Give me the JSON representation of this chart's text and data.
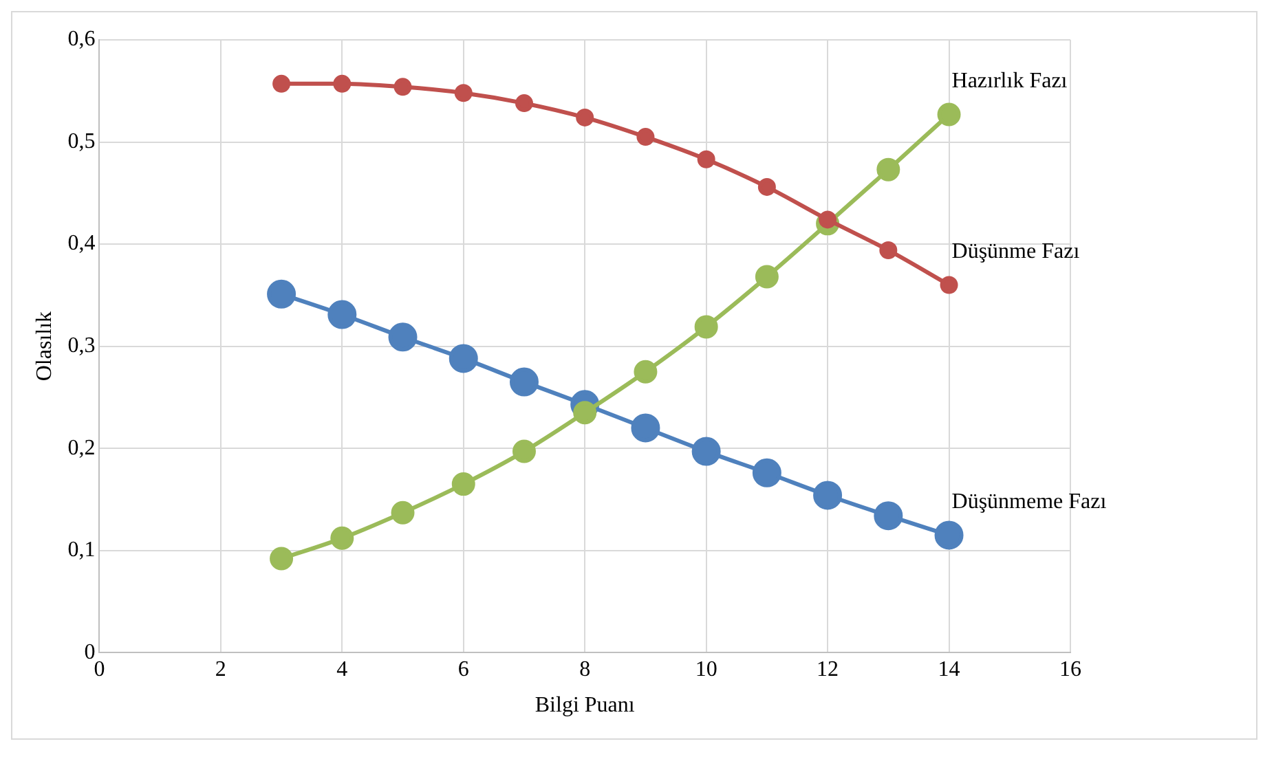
{
  "chart_data": {
    "type": "line",
    "xlabel": "Bilgi Puanı",
    "ylabel": "Olasılık",
    "x": [
      3,
      4,
      5,
      6,
      7,
      8,
      9,
      10,
      11,
      12,
      13,
      14
    ],
    "series": [
      {
        "name": "Düşünme Fazı",
        "color": "#c0504d",
        "values": [
          0.557,
          0.557,
          0.554,
          0.548,
          0.538,
          0.524,
          0.505,
          0.483,
          0.456,
          0.424,
          0.394,
          0.36
        ]
      },
      {
        "name": "Hazırlık Fazı",
        "color": "#9bbb59",
        "values": [
          0.092,
          0.112,
          0.137,
          0.165,
          0.197,
          0.235,
          0.275,
          0.319,
          0.368,
          0.42,
          0.473,
          0.527
        ]
      },
      {
        "name": "Düşünmeme Fazı",
        "color": "#4f81bd",
        "values": [
          0.351,
          0.331,
          0.309,
          0.288,
          0.265,
          0.243,
          0.22,
          0.197,
          0.176,
          0.154,
          0.134,
          0.115
        ]
      }
    ],
    "xlim": [
      0,
      16
    ],
    "xticks": [
      0,
      2,
      4,
      6,
      8,
      10,
      12,
      14,
      16
    ],
    "ylim": [
      0,
      0.6
    ],
    "yticks": [
      0,
      {
        "value": 0.1,
        "label": "0,1"
      },
      {
        "value": 0.2,
        "label": "0,2"
      },
      {
        "value": 0.3,
        "label": "0,3"
      },
      {
        "value": 0.4,
        "label": "0,4"
      },
      {
        "value": 0.5,
        "label": "0,5"
      },
      {
        "value": 0.6,
        "label": "0,6"
      }
    ],
    "grid": true,
    "legend": false,
    "marker": "circle",
    "line_style": "solid"
  }
}
